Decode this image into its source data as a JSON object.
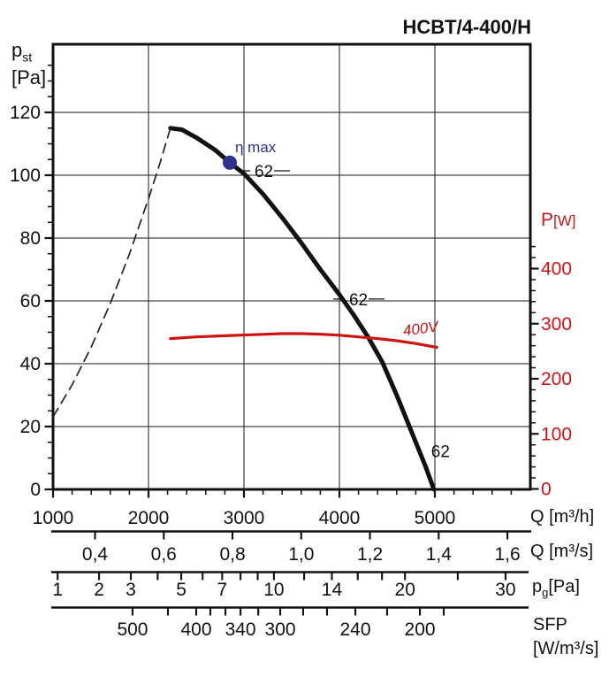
{
  "colors": {
    "curve_black": "#111111",
    "power_red": "#cc1414",
    "eta_navy": "#2e3192",
    "grid": "#1a1a1a",
    "background": "#ffffff"
  },
  "chart_data": {
    "type": "line",
    "title": "HCBT/4-400/H",
    "x_axis": {
      "label": "Q [m³/h]",
      "range": [
        1000,
        6000
      ],
      "major_ticks": [
        1000,
        2000,
        3000,
        4000,
        5000
      ],
      "minor_step": 200,
      "grid": [
        2000,
        3000,
        4000,
        5000
      ]
    },
    "y_left": {
      "symbol": "p",
      "sub": "st",
      "unit": "[Pa]",
      "range": [
        0,
        141
      ],
      "major_ticks": [
        0,
        20,
        40,
        60,
        80,
        100,
        120
      ],
      "minor_step": 5,
      "minor_max": 135,
      "grid": [
        20,
        40,
        60,
        80,
        100,
        120
      ]
    },
    "y_right": {
      "symbol": "P",
      "unit": "[W]",
      "color": "#cc1414",
      "range": [
        0,
        450
      ],
      "major_ticks": [
        0,
        100,
        200,
        300,
        400
      ],
      "minor_step": 20,
      "minor_max": 440
    },
    "sub_axes": [
      {
        "name": "q_m3s",
        "label": "Q [m³/s]",
        "ticks": [
          {
            "v": "0,4",
            "q": 1440
          },
          {
            "v": "0,6",
            "q": 2160
          },
          {
            "v": "0,8",
            "q": 2880
          },
          {
            "v": "1,0",
            "q": 3600
          },
          {
            "v": "1,2",
            "q": 4320
          },
          {
            "v": "1,4",
            "q": 5040
          },
          {
            "v": "1,6",
            "q": 5760
          }
        ]
      },
      {
        "name": "pg",
        "label_symbol": "p",
        "label_sub": "g",
        "label_unit": "[Pa]",
        "ticks": [
          {
            "v": "1",
            "q": 1048
          },
          {
            "v": "2",
            "q": 1482
          },
          {
            "v": "3",
            "q": 1815
          },
          {
            "v": "",
            "q": 2096
          },
          {
            "v": "5",
            "q": 2343
          },
          {
            "v": "",
            "q": 2567
          },
          {
            "v": "7",
            "q": 2772
          },
          {
            "v": "",
            "q": 2964
          },
          {
            "v": "",
            "q": 3144
          },
          {
            "v": "10",
            "q": 3314
          },
          {
            "v": "",
            "q": 3630
          },
          {
            "v": "14",
            "q": 3921
          },
          {
            "v": "",
            "q": 4192
          },
          {
            "v": "",
            "q": 4446
          },
          {
            "v": "20",
            "q": 4687
          },
          {
            "v": "",
            "q": 5240
          },
          {
            "v": "30",
            "q": 5740
          }
        ]
      },
      {
        "name": "sfp",
        "label_line1": "SFP",
        "label_line2": "[W/m³/s]",
        "ticks": [
          {
            "v": "500",
            "q": 1833
          },
          {
            "v": "",
            "q": 2204
          },
          {
            "v": "400",
            "q": 2500
          },
          {
            "v": "",
            "q": 2648
          },
          {
            "v": "",
            "q": 2806
          },
          {
            "v": "340",
            "q": 2964
          },
          {
            "v": "",
            "q": 3150
          },
          {
            "v": "300",
            "q": 3380
          },
          {
            "v": "",
            "q": 3620
          },
          {
            "v": "",
            "q": 3870
          },
          {
            "v": "240",
            "q": 4167
          },
          {
            "v": "",
            "q": 4500
          },
          {
            "v": "200",
            "q": 4843
          },
          {
            "v": "",
            "q": 5093
          }
        ]
      }
    ],
    "series": [
      {
        "name": "fan_pressure_curve",
        "axis": "left",
        "color": "#111111",
        "width": 5,
        "style": "solid",
        "points": [
          [
            2230,
            115
          ],
          [
            2350,
            114.5
          ],
          [
            2500,
            112
          ],
          [
            2700,
            108
          ],
          [
            2852,
            104
          ],
          [
            3000,
            100.5
          ],
          [
            3200,
            94
          ],
          [
            3400,
            86.5
          ],
          [
            3600,
            78.5
          ],
          [
            3800,
            70
          ],
          [
            4000,
            62
          ],
          [
            4150,
            55.5
          ],
          [
            4300,
            48.5
          ],
          [
            4450,
            40.5
          ],
          [
            4600,
            30
          ],
          [
            4700,
            22.5
          ],
          [
            4800,
            15
          ],
          [
            4900,
            7.5
          ],
          [
            4990,
            0
          ]
        ]
      },
      {
        "name": "stall_line",
        "axis": "left",
        "color": "#222222",
        "width": 1.7,
        "style": "dashed",
        "points": [
          [
            1000,
            23.1
          ],
          [
            1200,
            33.3
          ],
          [
            1400,
            45.3
          ],
          [
            1600,
            59.2
          ],
          [
            1800,
            74.9
          ],
          [
            2000,
            92.5
          ],
          [
            2120,
            103.9
          ],
          [
            2230,
            115
          ]
        ]
      },
      {
        "name": "power_400V",
        "axis": "right",
        "color": "#cc1414",
        "width": 3.2,
        "style": "solid",
        "label": "400V",
        "points": [
          [
            2230,
            273
          ],
          [
            2500,
            276
          ],
          [
            2800,
            278
          ],
          [
            3100,
            280
          ],
          [
            3400,
            282
          ],
          [
            3600,
            282
          ],
          [
            3800,
            281
          ],
          [
            4000,
            279
          ],
          [
            4200,
            276
          ],
          [
            4400,
            273
          ],
          [
            4600,
            269
          ],
          [
            4800,
            264
          ],
          [
            5020,
            257
          ]
        ]
      }
    ],
    "annotations": {
      "eta_max": {
        "label": "η max",
        "q": 2852,
        "pa": 104,
        "color": "#2e3192",
        "dot_radius": 8
      },
      "noise_labels": [
        {
          "text": "62",
          "q": 3083,
          "pa": 101.4,
          "line": true
        },
        {
          "text": "62",
          "q": 4074,
          "pa": 60.6,
          "line": true
        },
        {
          "text": "62",
          "q": 4850,
          "pa": 12,
          "line": false
        }
      ]
    }
  }
}
